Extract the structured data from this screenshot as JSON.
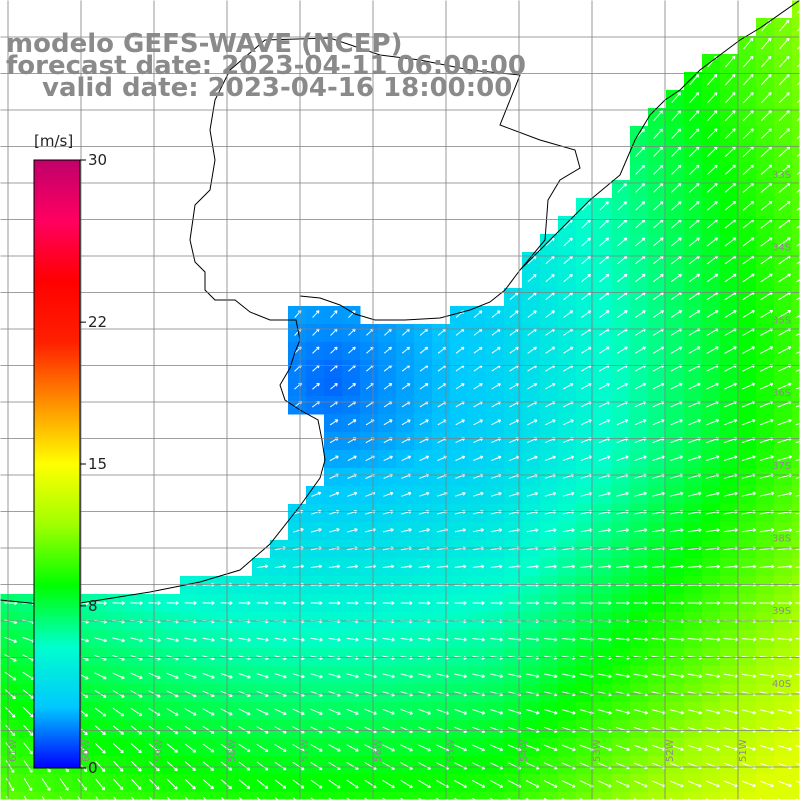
{
  "header": {
    "line1": "modelo GEFS-WAVE (NCEP)",
    "line2": "forecast date: 2023-04-11 06:00:00",
    "line3": "valid date: 2023-04-16 18:00:00"
  },
  "colorbar": {
    "unit_label": "[m/s]",
    "ticks": [
      "30",
      "22",
      "15",
      "8",
      "0"
    ],
    "tick_values": [
      30,
      22,
      15,
      8,
      0
    ],
    "min": 0,
    "max": 30,
    "colors": [
      "#0000ff",
      "#00c8ff",
      "#00ffcc",
      "#00ff00",
      "#a0ff00",
      "#ffff00",
      "#ff9000",
      "#ff2000",
      "#ff0000",
      "#ff0060",
      "#c0006a"
    ]
  },
  "map": {
    "latitude_labels": [
      "33S",
      "34S",
      "35S",
      "36S",
      "37S",
      "38S",
      "39S",
      "40S"
    ],
    "longitude_labels": [
      "61W",
      "60W",
      "59W",
      "58W",
      "57W",
      "56W",
      "55W",
      "54W",
      "53W",
      "52W",
      "51W"
    ],
    "background_color": "#ffffff",
    "grid_color": "#7f7f7f",
    "coast_color": "#000000",
    "arrow_color": "#ffffff",
    "field": "wind speed and direction"
  }
}
